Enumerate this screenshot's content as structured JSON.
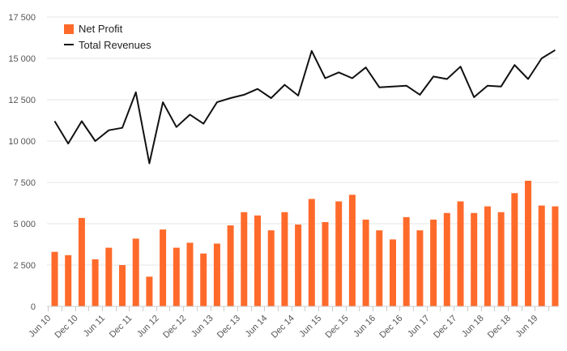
{
  "chart_data": {
    "type": "bar",
    "x_tick_labels": [
      "Jun 10",
      "Dec 10",
      "Jun 11",
      "Dec 11",
      "Jun 12",
      "Dec 12",
      "Jun 13",
      "Dec 13",
      "Jun 14",
      "Dec 14",
      "Jun 15",
      "Dec 15",
      "Jun 16",
      "Dec 16",
      "Jun 17",
      "Dec 17",
      "Jun 18",
      "Dec 18",
      "Jun 19"
    ],
    "y_ticks": [
      0,
      2500,
      5000,
      7500,
      10000,
      12500,
      15000,
      17500
    ],
    "y_tick_labels": [
      "0",
      "2 500",
      "5 000",
      "7 500",
      "10 000",
      "12 500",
      "15 000",
      "17 500"
    ],
    "ylim": [
      0,
      17500
    ],
    "grid": true,
    "legend_position": "top-left",
    "series": [
      {
        "name": "Net Profit",
        "type": "bar",
        "color": "#ff6a2b",
        "values": [
          3300,
          3100,
          5350,
          2850,
          3550,
          2500,
          4100,
          1800,
          4650,
          3550,
          3850,
          3200,
          3800,
          4900,
          5700,
          5500,
          4600,
          5700,
          4950,
          6500,
          5100,
          6350,
          6750,
          5250,
          4600,
          4050,
          5400,
          4600,
          5250,
          5650,
          6350,
          5650,
          6050,
          5700,
          6850,
          7600,
          6100,
          6050
        ]
      },
      {
        "name": "Total Revenues",
        "type": "line",
        "color": "#111111",
        "values": [
          11200,
          9850,
          11200,
          10000,
          10650,
          10800,
          12950,
          8650,
          12350,
          10850,
          11600,
          11050,
          12350,
          12600,
          12800,
          13150,
          12600,
          13400,
          12750,
          15450,
          13800,
          14150,
          13800,
          14450,
          13250,
          13300,
          13350,
          12800,
          13900,
          13750,
          14500,
          12650,
          13350,
          13300,
          14600,
          13750,
          15000,
          15500
        ]
      }
    ]
  }
}
